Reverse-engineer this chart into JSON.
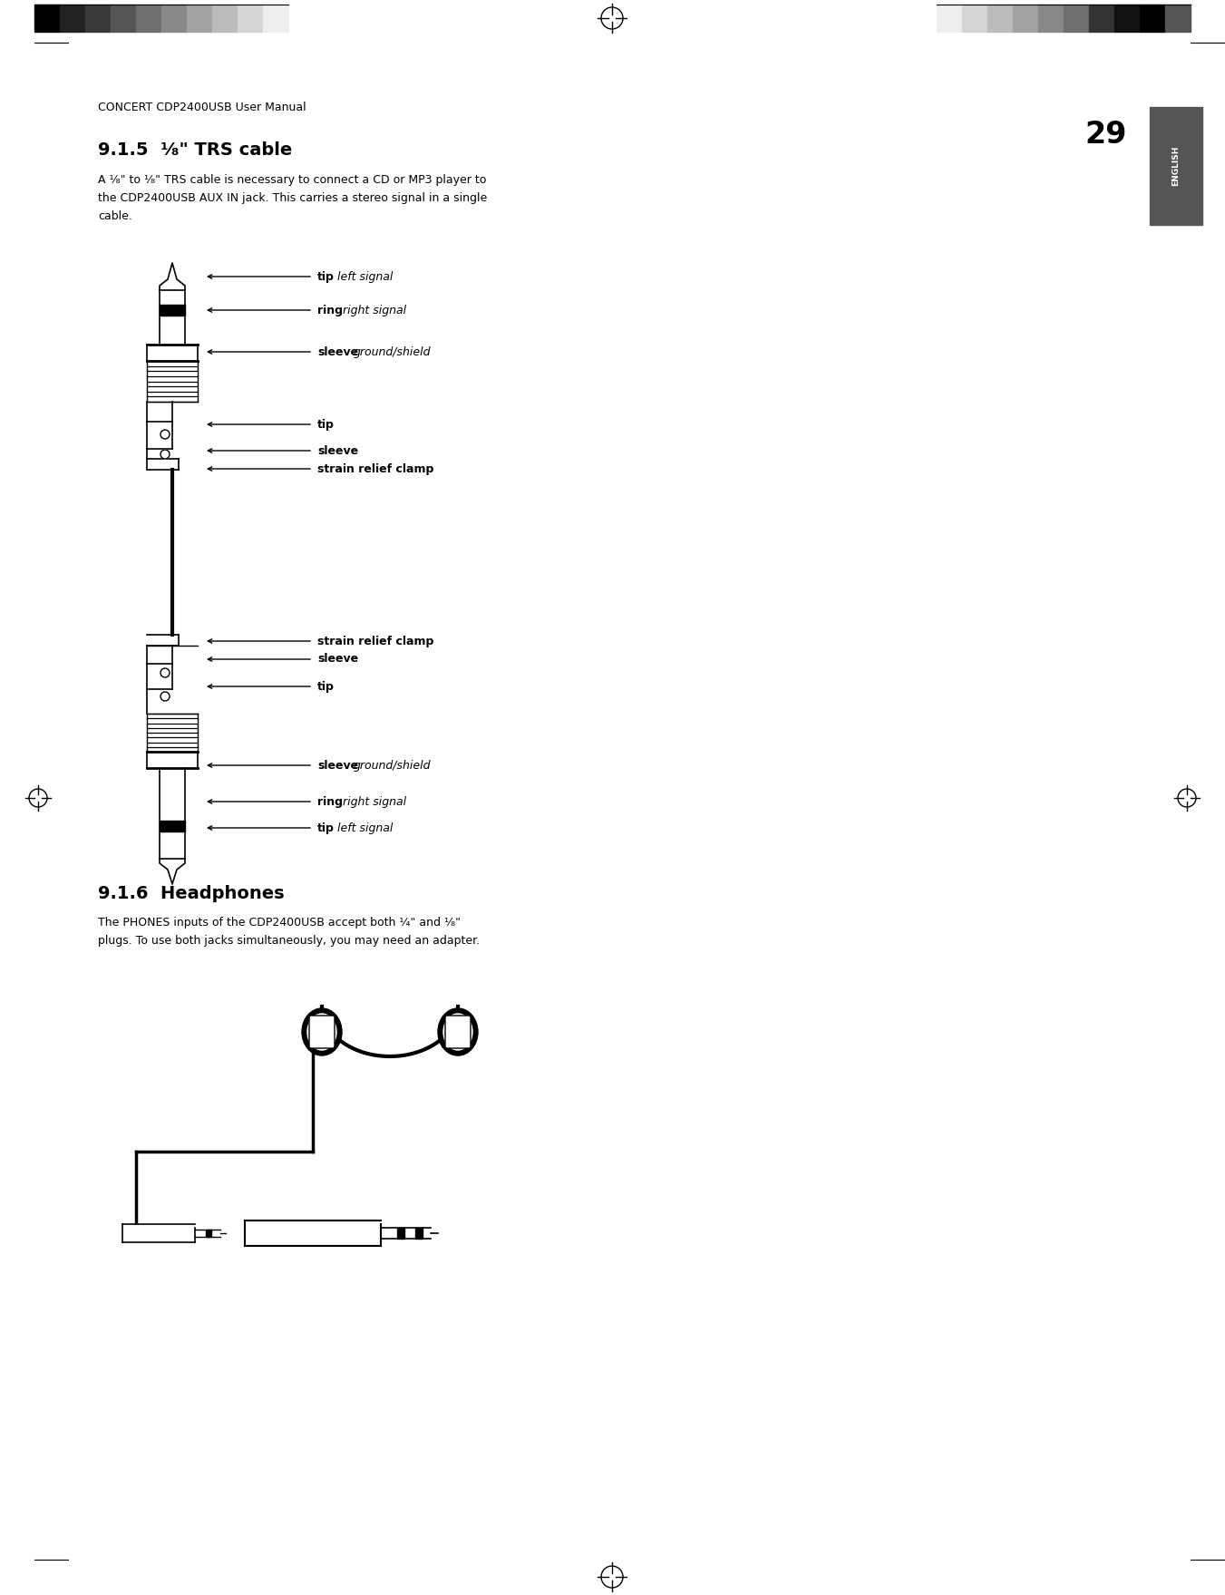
{
  "page_bg": "#ffffff",
  "header_text": "CONCERT CDP2400USB User Manual",
  "page_number": "29",
  "section_title": "9.1.5  ¹⁄₈\" TRS cable",
  "section_body_line1": "A ¹⁄₈\" to ¹⁄₈\" TRS cable is necessary to connect a CD or MP3 player to",
  "section_body_line2": "the CDP2400USB AUX IN jack. This carries a stereo signal in a single",
  "section_body_line3": "cable.",
  "section2_title": "9.1.6  Headphones",
  "section2_body_line1": "The PHONES inputs of the CDP2400USB accept both ¹⁄₄\" and ¹⁄₈\"",
  "section2_body_line2": "plugs. To use both jacks simultaneously, you may need an adapter.",
  "color_bar_left": [
    "#000000",
    "#222222",
    "#3a3a3a",
    "#555555",
    "#6e6e6e",
    "#888888",
    "#a2a2a2",
    "#bbbbbb",
    "#d5d5d5",
    "#eeeeee"
  ],
  "color_bar_right": [
    "#eeeeee",
    "#d5d5d5",
    "#bbbbbb",
    "#a2a2a2",
    "#888888",
    "#6e6e6e",
    "#333333",
    "#111111",
    "#000000",
    "#555555"
  ],
  "upper_labels": [
    {
      "bold": "tip",
      "italic": "left signal"
    },
    {
      "bold": "ring",
      "italic": "right signal"
    },
    {
      "bold": "sleeve",
      "italic": "ground/shield"
    },
    {
      "bold": "tip",
      "italic": ""
    },
    {
      "bold": "sleeve",
      "italic": ""
    },
    {
      "bold": "strain relief clamp",
      "italic": ""
    }
  ],
  "lower_labels": [
    {
      "bold": "strain relief clamp",
      "italic": ""
    },
    {
      "bold": "sleeve",
      "italic": ""
    },
    {
      "bold": "tip",
      "italic": ""
    },
    {
      "bold": "sleeve",
      "italic": "ground/shield"
    },
    {
      "bold": "ring",
      "italic": "right signal"
    },
    {
      "bold": "tip",
      "italic": "left signal"
    }
  ]
}
